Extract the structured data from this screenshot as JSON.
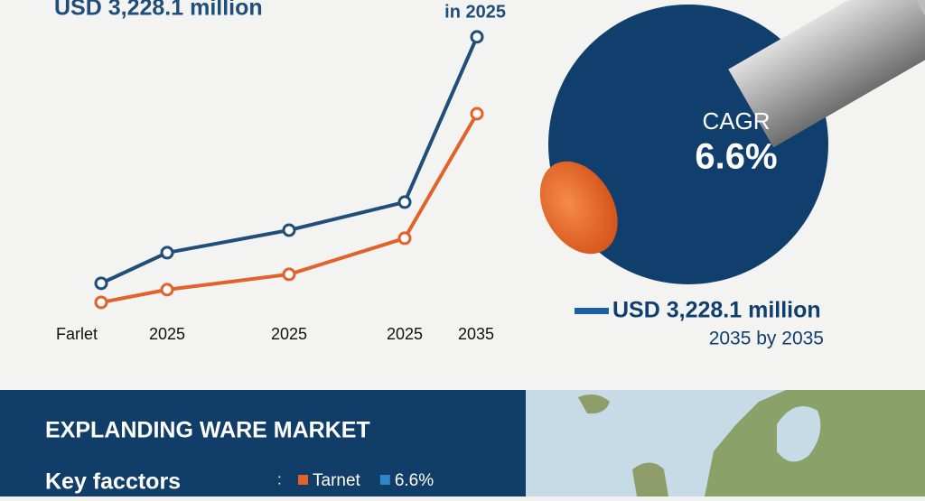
{
  "header": {
    "title": "USD 3,228.1 million",
    "note": "in 2025"
  },
  "chart_data": {
    "type": "line",
    "categories": [
      "Farlet",
      "2025",
      "2025",
      "2025",
      "2035"
    ],
    "series": [
      {
        "color": "#1f4e79",
        "values": [
          11.3,
          21.9,
          29.7,
          39.4,
          96.6
        ]
      },
      {
        "color": "#e2622b",
        "values": [
          4.7,
          9.1,
          14.4,
          26.9,
          70
        ]
      }
    ],
    "ylim": [
      0,
      100
    ]
  },
  "cagr": {
    "label": "CAGR",
    "value": "6.6%"
  },
  "summary": {
    "value": "USD 3,228.1 million",
    "note": "2035 by 2035"
  },
  "footer": {
    "title": "EXPLANDING WARE MARKET",
    "subtitle": "Key facctors",
    "separator": ":",
    "legend": [
      {
        "label": "Tarnet",
        "color": "#e2622b"
      },
      {
        "label": "6.6%",
        "color": "#2e86c8"
      }
    ]
  }
}
